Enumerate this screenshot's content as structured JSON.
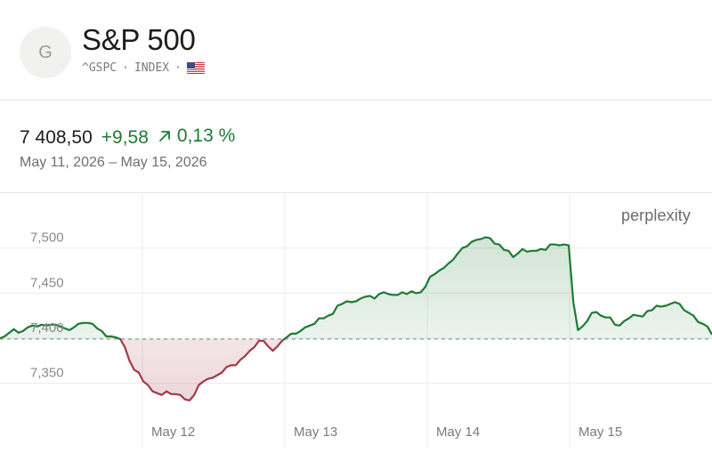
{
  "header": {
    "avatar_letter": "G",
    "title": "S&P 500",
    "ticker": "^GSPC",
    "sep1": "·",
    "market": "INDEX",
    "sep2": "·",
    "flag_icon": "us-flag-icon"
  },
  "quote": {
    "price": "7 408,50",
    "change": "+9,58",
    "change_pct": "0,13 %",
    "date_range": "May 11, 2026 – May 15, 2026"
  },
  "brand": "perplexity",
  "colors": {
    "up": "#1f7a34",
    "down": "#a23a48",
    "baseline": "#9a9a9a",
    "grid": "#ebebeb"
  },
  "chart_data": {
    "type": "area",
    "title": "",
    "xlabel": "",
    "ylabel": "",
    "x_tick_labels": [
      "May 12",
      "May 13",
      "May 14",
      "May 15"
    ],
    "y_ticks": [
      7350,
      7400,
      7450,
      7500
    ],
    "y_tick_labels": [
      "7,350",
      "7,400",
      "7,450",
      "7,500"
    ],
    "ylim": [
      7319,
      7560
    ],
    "baseline": 7399,
    "grid": true,
    "series": [
      {
        "values": [
          7400,
          7402,
          7406,
          7410,
          7406,
          7408,
          7412,
          7414,
          7413,
          7415,
          7414,
          7415,
          7415,
          7413,
          7411,
          7409,
          7412,
          7416,
          7417,
          7417,
          7416,
          7411,
          7408,
          7402,
          7402,
          7401,
          7399,
          7390,
          7375,
          7365,
          7362,
          7352,
          7348,
          7341,
          7339,
          7337,
          7341,
          7338,
          7338,
          7337,
          7332,
          7331,
          7337,
          7348,
          7352,
          7355,
          7356,
          7359,
          7362,
          7368,
          7370,
          7370,
          7376,
          7380,
          7386,
          7390,
          7397,
          7397,
          7391,
          7386,
          7391,
          7397,
          7401,
          7405,
          7405,
          7408,
          7412,
          7414,
          7416,
          7422,
          7422,
          7425,
          7427,
          7436,
          7438,
          7441,
          7440,
          7441,
          7444,
          7446,
          7447,
          7444,
          7449,
          7451,
          7449,
          7448,
          7448,
          7451,
          7449,
          7452,
          7450,
          7451,
          7457,
          7468,
          7471,
          7475,
          7478,
          7483,
          7487,
          7494,
          7500,
          7502,
          7507,
          7509,
          7510,
          7512,
          7511,
          7505,
          7504,
          7498,
          7497,
          7490,
          7494,
          7499,
          7496,
          7497,
          7497,
          7499,
          7498,
          7504,
          7504,
          7503,
          7504,
          7503,
          7440,
          7409,
          7413,
          7419,
          7428,
          7429,
          7425,
          7423,
          7423,
          7415,
          7414,
          7419,
          7422,
          7426,
          7425,
          7424,
          7430,
          7431,
          7436,
          7435,
          7436,
          7438,
          7440,
          7438,
          7431,
          7428,
          7425,
          7418,
          7416,
          7413,
          7404
        ]
      }
    ]
  }
}
